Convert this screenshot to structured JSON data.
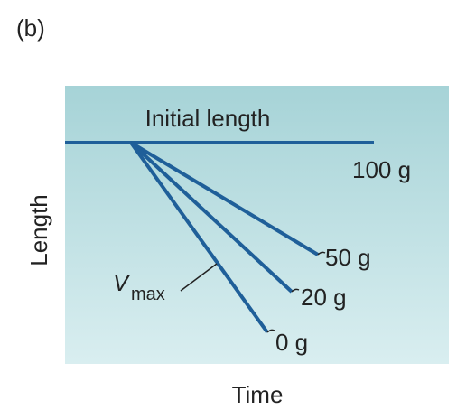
{
  "panel_label": "(b)",
  "initial_length": "Initial length",
  "curves": [
    {
      "label": "100 g"
    },
    {
      "label": "50 g"
    },
    {
      "label": "20 g"
    },
    {
      "label": "0 g"
    }
  ],
  "vmax": {
    "symbol": "V",
    "subscript": "max"
  },
  "axes": {
    "y_label": "Length",
    "x_label": "Time"
  }
}
